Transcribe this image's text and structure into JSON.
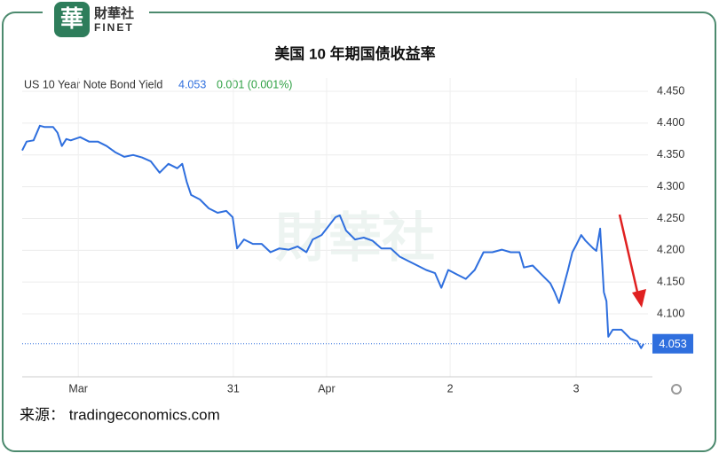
{
  "brand": {
    "name": "財華社",
    "sub": "FINET"
  },
  "chart_data": {
    "type": "line",
    "title": "美国 10 年期国债收益率",
    "instrument": "US 10 Year Note Bond Yield",
    "last": 4.053,
    "change": "0.001 (0.001%)",
    "color": "#2f6fde",
    "x": [
      0,
      0.7,
      1.8,
      2.8,
      3.5,
      4.9,
      5.6,
      6.3,
      7.0,
      7.7,
      9.2,
      10.6,
      12.0,
      13.4,
      14.8,
      16.2,
      17.6,
      19.0,
      20.4,
      21.8,
      23.2,
      24.6,
      25.4,
      26.1,
      26.8,
      28.2,
      29.6,
      31.0,
      32.4,
      33.4,
      34.1,
      35.2,
      36.6,
      38.0,
      39.4,
      40.8,
      42.3,
      43.7,
      45.1,
      46.1,
      47.5,
      48.6,
      49.7,
      50.4,
      51.4,
      52.8,
      54.2,
      55.6,
      57.0,
      58.5,
      59.9,
      61.3,
      62.7,
      64.1,
      65.5,
      66.5,
      67.6,
      69.0,
      70.4,
      71.8,
      73.2,
      74.6,
      76.1,
      77.5,
      78.9,
      79.6,
      81.0,
      82.4,
      83.8,
      84.5,
      85.2,
      86.6,
      87.3,
      88.0,
      88.7,
      89.4,
      90.6,
      91.1,
      91.7,
      92.3,
      92.7,
      93.0,
      93.7,
      95.1,
      96.5,
      97.6,
      98.2,
      98.6
    ],
    "values": [
      4.357,
      4.371,
      4.373,
      4.396,
      4.394,
      4.394,
      4.385,
      4.364,
      4.375,
      4.373,
      4.378,
      4.371,
      4.371,
      4.364,
      4.354,
      4.347,
      4.35,
      4.346,
      4.34,
      4.322,
      4.336,
      4.329,
      4.336,
      4.308,
      4.287,
      4.28,
      4.266,
      4.259,
      4.262,
      4.252,
      4.203,
      4.217,
      4.21,
      4.21,
      4.197,
      4.203,
      4.201,
      4.206,
      4.197,
      4.217,
      4.224,
      4.238,
      4.252,
      4.255,
      4.231,
      4.217,
      4.22,
      4.215,
      4.203,
      4.203,
      4.19,
      4.183,
      4.176,
      4.169,
      4.164,
      4.141,
      4.169,
      4.162,
      4.155,
      4.169,
      4.197,
      4.197,
      4.201,
      4.197,
      4.197,
      4.173,
      4.176,
      4.162,
      4.148,
      4.134,
      4.117,
      4.169,
      4.197,
      4.21,
      4.224,
      4.215,
      4.203,
      4.199,
      4.234,
      4.134,
      4.12,
      4.064,
      4.075,
      4.075,
      4.061,
      4.057,
      4.046,
      4.053
    ],
    "xlim": [
      0,
      100
    ],
    "ylim": [
      4.001,
      4.471
    ],
    "xticks": [
      {
        "value": 8.9,
        "label": "Mar"
      },
      {
        "value": 33.5,
        "label": "31"
      },
      {
        "value": 48.3,
        "label": "Apr"
      },
      {
        "value": 67.9,
        "label": "2"
      },
      {
        "value": 87.9,
        "label": "3"
      }
    ],
    "yticks": [
      {
        "value": 4.1,
        "label": "4.100"
      },
      {
        "value": 4.15,
        "label": "4.150"
      },
      {
        "value": 4.2,
        "label": "4.200"
      },
      {
        "value": 4.25,
        "label": "4.250"
      },
      {
        "value": 4.3,
        "label": "4.300"
      },
      {
        "value": 4.35,
        "label": "4.350"
      },
      {
        "value": 4.4,
        "label": "4.400"
      },
      {
        "value": 4.45,
        "label": "4.450"
      }
    ],
    "grid": true,
    "source": "来源： tradingeconomics.com"
  }
}
